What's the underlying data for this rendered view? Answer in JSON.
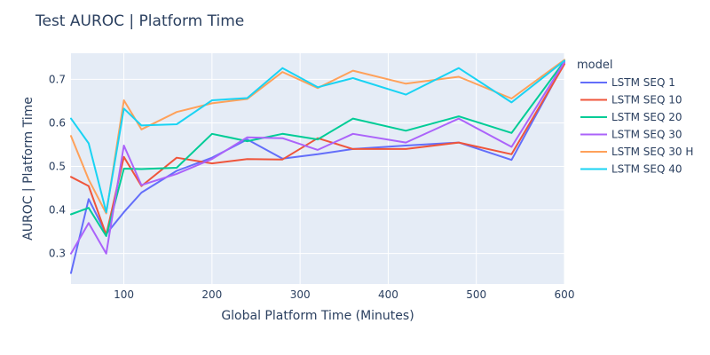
{
  "chart_data": {
    "type": "line",
    "title": "Test AUROC | Platform Time",
    "xlabel": "Global Platform Time (Minutes)",
    "ylabel": "AUROC | Platform Time",
    "xlim": [
      40,
      600
    ],
    "ylim": [
      0.23,
      0.76
    ],
    "xticks": [
      100,
      200,
      300,
      400,
      500,
      600
    ],
    "yticks": [
      0.3,
      0.4,
      0.5,
      0.6,
      0.7
    ],
    "grid": true,
    "legend_title": "model",
    "legend_position": "right",
    "background": "#e5ecf6",
    "series": [
      {
        "name": "LSTM SEQ 1",
        "color": "#636efa",
        "x": [
          40,
          60,
          80,
          100,
          120,
          160,
          200,
          240,
          280,
          320,
          360,
          420,
          480,
          540,
          600
        ],
        "y": [
          0.255,
          0.425,
          0.345,
          0.395,
          0.44,
          0.49,
          0.52,
          0.562,
          0.518,
          0.528,
          0.54,
          0.548,
          0.555,
          0.515,
          0.738
        ]
      },
      {
        "name": "LSTM SEQ 10",
        "color": "#ef553b",
        "x": [
          40,
          60,
          80,
          100,
          120,
          160,
          200,
          240,
          280,
          320,
          360,
          420,
          480,
          540,
          600
        ],
        "y": [
          0.476,
          0.455,
          0.343,
          0.522,
          0.455,
          0.52,
          0.507,
          0.517,
          0.516,
          0.565,
          0.54,
          0.54,
          0.555,
          0.528,
          0.735
        ]
      },
      {
        "name": "LSTM SEQ 20",
        "color": "#00cc96",
        "x": [
          40,
          60,
          80,
          100,
          120,
          160,
          200,
          240,
          280,
          320,
          360,
          420,
          480,
          540,
          600
        ],
        "y": [
          0.39,
          0.405,
          0.34,
          0.495,
          0.494,
          0.497,
          0.575,
          0.558,
          0.575,
          0.562,
          0.61,
          0.582,
          0.615,
          0.577,
          0.742
        ]
      },
      {
        "name": "LSTM SEQ 30",
        "color": "#ab63fa",
        "x": [
          40,
          60,
          80,
          100,
          120,
          160,
          200,
          240,
          280,
          320,
          360,
          420,
          480,
          540,
          600
        ],
        "y": [
          0.3,
          0.37,
          0.3,
          0.548,
          0.457,
          0.483,
          0.517,
          0.567,
          0.565,
          0.538,
          0.575,
          0.555,
          0.61,
          0.545,
          0.74
        ]
      },
      {
        "name": "LSTM SEQ 30 H",
        "color": "#ffa15a",
        "x": [
          40,
          60,
          80,
          100,
          120,
          160,
          200,
          240,
          280,
          320,
          360,
          420,
          480,
          540,
          600
        ],
        "y": [
          0.57,
          0.47,
          0.392,
          0.652,
          0.585,
          0.625,
          0.645,
          0.655,
          0.717,
          0.68,
          0.72,
          0.69,
          0.706,
          0.656,
          0.745
        ]
      },
      {
        "name": "LSTM SEQ 40",
        "color": "#19d3f3",
        "x": [
          40,
          60,
          80,
          100,
          120,
          160,
          200,
          240,
          280,
          320,
          360,
          420,
          480,
          540,
          600
        ],
        "y": [
          0.61,
          0.553,
          0.395,
          0.633,
          0.594,
          0.597,
          0.652,
          0.657,
          0.726,
          0.682,
          0.703,
          0.665,
          0.726,
          0.647,
          0.743
        ]
      }
    ]
  }
}
